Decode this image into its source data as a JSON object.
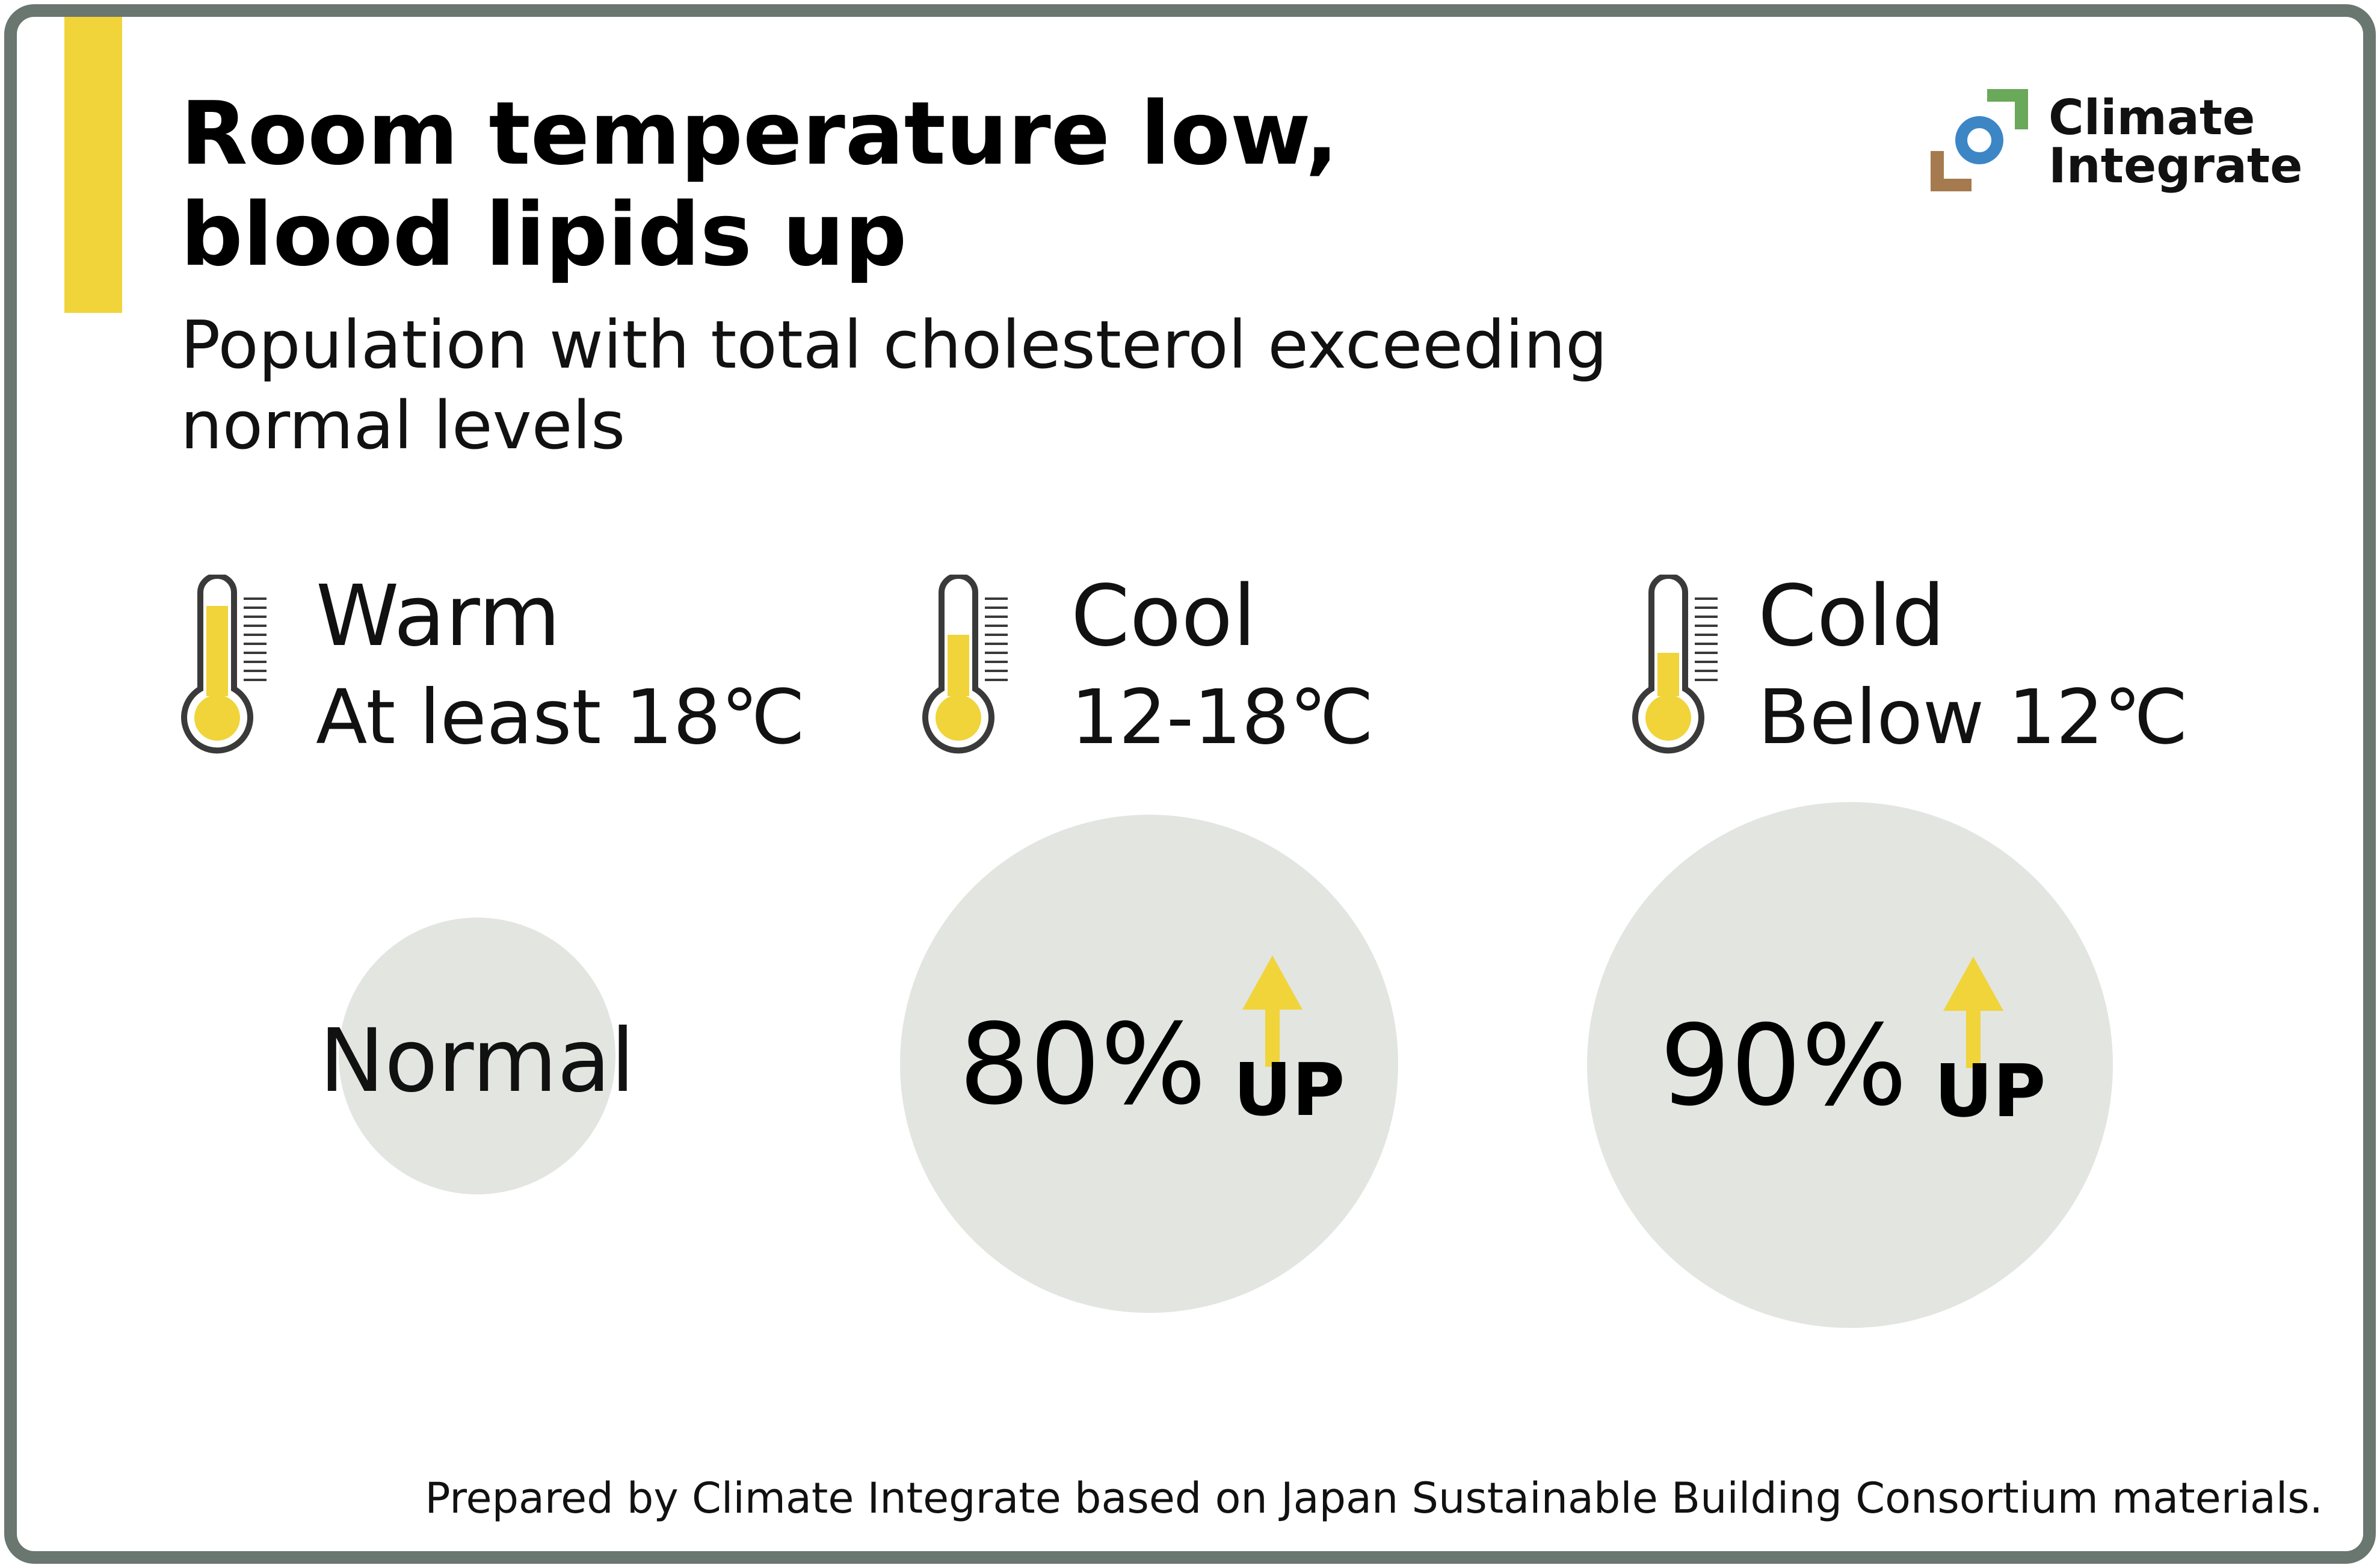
{
  "title": {
    "line1": "Room temperature low,",
    "line2": "blood lipids up"
  },
  "subtitle": {
    "line1": "Population with total cholesterol exceeding",
    "line2": "normal levels"
  },
  "logo": {
    "line1": "Climate",
    "line2": "Integrate"
  },
  "colors": {
    "accent": "#f0d43a",
    "border": "#6a7670",
    "bubble": "#e2e5e0",
    "thermometer_outline": "#3a3a3a",
    "logo_green": "#6aa85a",
    "logo_blue": "#3d86c6",
    "logo_brown": "#a57a4e"
  },
  "chart_data": {
    "type": "bubble",
    "title": "Room temperature low, blood lipids up",
    "subtitle": "Population with total cholesterol exceeding normal levels",
    "categories": [
      {
        "name": "Warm",
        "range": "At least 18℃",
        "thermometer_fill": 0.85,
        "value_label": "Normal",
        "increase_percent": 0,
        "suffix": ""
      },
      {
        "name": "Cool",
        "range": "12-18℃",
        "thermometer_fill": 0.6,
        "value_label": "80%",
        "increase_percent": 80,
        "suffix": "UP"
      },
      {
        "name": "Cold",
        "range": "Below 12℃",
        "thermometer_fill": 0.45,
        "value_label": "90%",
        "increase_percent": 90,
        "suffix": "UP"
      }
    ],
    "relative_size": [
      1.0,
      1.8,
      1.9
    ],
    "source": "Prepared by Climate Integrate based on Japan Sustainable Building Consortium materials."
  },
  "footnote": "Prepared by Climate Integrate based on Japan Sustainable Building Consortium materials."
}
